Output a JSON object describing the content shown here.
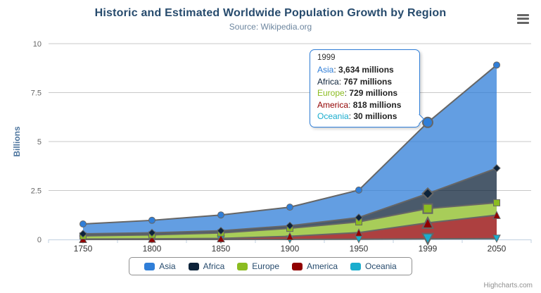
{
  "title": "Historic and Estimated Worldwide Population Growth by Region",
  "subtitle": "Source: Wikipedia.org",
  "credits": "Highcharts.com",
  "y_axis": {
    "title": "Billions",
    "tick_labels": [
      "0",
      "2.5",
      "5",
      "7.5",
      "10"
    ],
    "tick_values": [
      0,
      2.5,
      5,
      7.5,
      10
    ]
  },
  "x_axis": {
    "categories": [
      "1750",
      "1800",
      "1850",
      "1900",
      "1950",
      "1999",
      "2050"
    ]
  },
  "chart_data": {
    "type": "area",
    "stacking": "normal",
    "unit": "millions",
    "title": "Historic and Estimated Worldwide Population Growth by Region",
    "subtitle": "Source: Wikipedia.org",
    "xlabel": "",
    "ylabel": "Billions",
    "ylim": [
      0,
      10
    ],
    "grid": true,
    "legend_position": "bottom",
    "hovered_category": "1999",
    "categories": [
      "1750",
      "1800",
      "1850",
      "1900",
      "1950",
      "1999",
      "2050"
    ],
    "series": [
      {
        "name": "Asia",
        "color": "#2f7ed8",
        "marker": "circle",
        "values": [
          502,
          635,
          809,
          947,
          1402,
          3634,
          5268
        ]
      },
      {
        "name": "Africa",
        "color": "#0d233a",
        "marker": "diamond",
        "values": [
          106,
          107,
          111,
          133,
          221,
          767,
          1766
        ]
      },
      {
        "name": "Europe",
        "color": "#8bbc21",
        "marker": "square",
        "values": [
          163,
          203,
          276,
          408,
          547,
          729,
          628
        ]
      },
      {
        "name": "America",
        "color": "#910000",
        "marker": "triangle",
        "values": [
          18,
          31,
          54,
          156,
          339,
          818,
          1201
        ]
      },
      {
        "name": "Oceania",
        "color": "#1aadce",
        "marker": "triangle-down",
        "values": [
          2,
          2,
          2,
          6,
          13,
          30,
          46
        ]
      }
    ],
    "line_color": "#666666",
    "fill_opacity": 0.75
  },
  "tooltip": {
    "header": "1999",
    "rows": [
      {
        "name": "Asia",
        "color": "#2f7ed8",
        "value": "3,634 millions"
      },
      {
        "name": "Africa",
        "color": "#0d233a",
        "value": "767 millions"
      },
      {
        "name": "Europe",
        "color": "#8bbc21",
        "value": "729 millions"
      },
      {
        "name": "America",
        "color": "#910000",
        "value": "818 millions"
      },
      {
        "name": "Oceania",
        "color": "#1aadce",
        "value": "30 millions"
      }
    ]
  },
  "legend": {
    "items": [
      {
        "label": "Asia",
        "color": "#2f7ed8"
      },
      {
        "label": "Africa",
        "color": "#0d233a"
      },
      {
        "label": "Europe",
        "color": "#8bbc21"
      },
      {
        "label": "America",
        "color": "#910000"
      },
      {
        "label": "Oceania",
        "color": "#1aadce"
      }
    ]
  }
}
